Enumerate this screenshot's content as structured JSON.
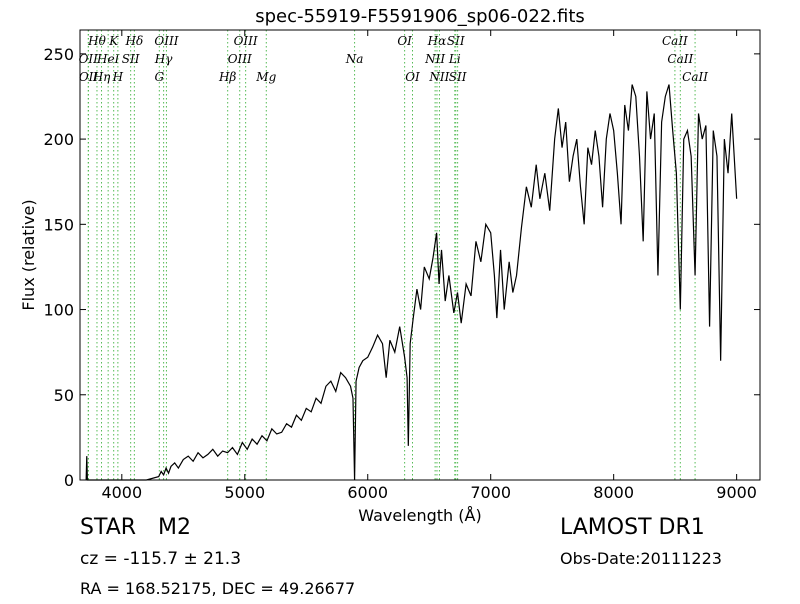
{
  "chart_data": {
    "type": "line",
    "title": "spec-55919-F5591906_sp06-022.fits",
    "xlabel": "Wavelength (Å)",
    "ylabel": "Flux (relative)",
    "xlim": [
      3660,
      9190
    ],
    "ylim": [
      0,
      264
    ],
    "xticks": [
      4000,
      5000,
      6000,
      7000,
      8000,
      9000
    ],
    "yticks": [
      0,
      50,
      100,
      150,
      200,
      250
    ],
    "color": "#000000",
    "line_color": "#55bb55",
    "x": [
      3710,
      3715,
      3720,
      3725,
      3730,
      4200,
      4300,
      4320,
      4340,
      4360,
      4380,
      4400,
      4430,
      4460,
      4500,
      4540,
      4580,
      4620,
      4660,
      4700,
      4740,
      4780,
      4820,
      4860,
      4900,
      4940,
      4980,
      5020,
      5060,
      5100,
      5140,
      5180,
      5220,
      5260,
      5300,
      5340,
      5380,
      5420,
      5460,
      5500,
      5540,
      5580,
      5620,
      5660,
      5700,
      5740,
      5780,
      5820,
      5860,
      5880,
      5893,
      5905,
      5930,
      5960,
      6000,
      6040,
      6080,
      6120,
      6150,
      6180,
      6220,
      6260,
      6300,
      6320,
      6330,
      6345,
      6370,
      6400,
      6430,
      6460,
      6500,
      6530,
      6560,
      6580,
      6600,
      6630,
      6660,
      6700,
      6730,
      6760,
      6800,
      6840,
      6880,
      6920,
      6960,
      7000,
      7030,
      7050,
      7080,
      7110,
      7150,
      7180,
      7210,
      7250,
      7290,
      7330,
      7370,
      7400,
      7440,
      7480,
      7520,
      7550,
      7580,
      7610,
      7640,
      7670,
      7700,
      7730,
      7760,
      7790,
      7820,
      7850,
      7880,
      7910,
      7940,
      7970,
      8000,
      8030,
      8060,
      8090,
      8120,
      8150,
      8180,
      8210,
      8240,
      8270,
      8300,
      8330,
      8360,
      8390,
      8420,
      8450,
      8480,
      8510,
      8542,
      8570,
      8600,
      8630,
      8662,
      8690,
      8720,
      8750,
      8780,
      8810,
      8840,
      8870,
      8900,
      8930,
      8960,
      9000
    ],
    "values": [
      0,
      14,
      0,
      0,
      0,
      0,
      2,
      5,
      3,
      7,
      4,
      8,
      10,
      7,
      12,
      14,
      11,
      16,
      13,
      15,
      18,
      14,
      17,
      16,
      19,
      15,
      22,
      18,
      24,
      21,
      26,
      23,
      30,
      27,
      28,
      33,
      31,
      38,
      35,
      42,
      40,
      48,
      45,
      55,
      58,
      52,
      63,
      60,
      55,
      48,
      0,
      58,
      66,
      70,
      72,
      78,
      85,
      80,
      60,
      82,
      75,
      90,
      72,
      60,
      20,
      80,
      95,
      112,
      100,
      125,
      118,
      130,
      145,
      115,
      135,
      105,
      120,
      98,
      110,
      92,
      115,
      108,
      140,
      128,
      150,
      145,
      120,
      95,
      135,
      100,
      128,
      110,
      120,
      148,
      172,
      160,
      185,
      165,
      180,
      158,
      200,
      218,
      195,
      210,
      175,
      190,
      200,
      172,
      150,
      195,
      185,
      205,
      190,
      160,
      200,
      215,
      205,
      180,
      150,
      220,
      205,
      232,
      225,
      190,
      140,
      228,
      200,
      215,
      120,
      210,
      225,
      232,
      205,
      180,
      100,
      200,
      205,
      190,
      120,
      215,
      200,
      208,
      90,
      205,
      190,
      70,
      200,
      180,
      215,
      165
    ],
    "line_labels": [
      [
        {
          "wavelength": 3798,
          "label": "Hθ"
        },
        {
          "wavelength": 3934,
          "label": "K"
        },
        {
          "wavelength": 4102,
          "label": "Hδ"
        },
        {
          "wavelength": 4363,
          "label": "OIII"
        },
        {
          "wavelength": 5007,
          "label": "OIII"
        },
        {
          "wavelength": 6300,
          "label": "OI"
        },
        {
          "wavelength": 6563,
          "label": "Hα"
        },
        {
          "wavelength": 6716,
          "label": "SII"
        },
        {
          "wavelength": 8498,
          "label": "CaII"
        }
      ],
      [
        {
          "wavelength": 3727,
          "label": "OII"
        },
        {
          "wavelength": 3889,
          "label": "HeI"
        },
        {
          "wavelength": 4072,
          "label": "SII"
        },
        {
          "wavelength": 4340,
          "label": "Hγ"
        },
        {
          "wavelength": 4959,
          "label": "OIII"
        },
        {
          "wavelength": 5893,
          "label": "Na"
        },
        {
          "wavelength": 6548,
          "label": "NII"
        },
        {
          "wavelength": 6708,
          "label": "Li"
        },
        {
          "wavelength": 8542,
          "label": "CaII"
        }
      ],
      [
        {
          "wavelength": 3729,
          "label": "OII"
        },
        {
          "wavelength": 3835,
          "label": "Hη"
        },
        {
          "wavelength": 3968,
          "label": "H"
        },
        {
          "wavelength": 4305,
          "label": "G"
        },
        {
          "wavelength": 4861,
          "label": "Hβ"
        },
        {
          "wavelength": 5175,
          "label": "Mg"
        },
        {
          "wavelength": 6364,
          "label": "OI"
        },
        {
          "wavelength": 6583,
          "label": "NII"
        },
        {
          "wavelength": 6731,
          "label": "SII"
        },
        {
          "wavelength": 8662,
          "label": "CaII"
        }
      ]
    ]
  },
  "info": {
    "object_class": "STAR",
    "subclass": "M2",
    "cz": "cz = -115.7 ± 21.3",
    "coords": "RA = 168.52175, DEC = 49.26677",
    "survey": "LAMOST DR1",
    "obs_date": "Obs-Date:20111223"
  }
}
